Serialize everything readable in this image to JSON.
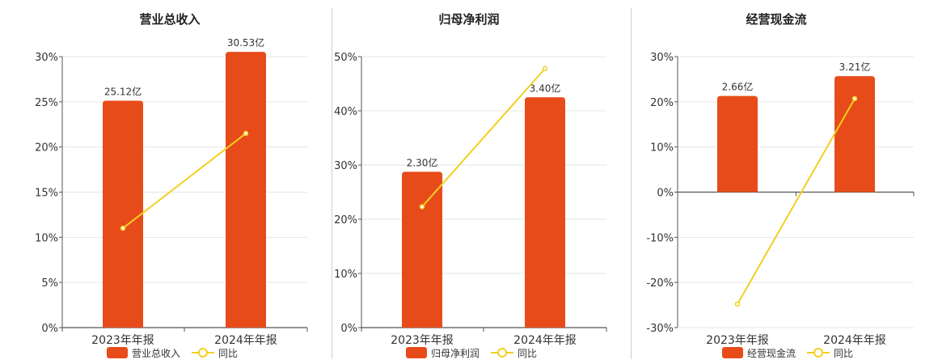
{
  "colors": {
    "bar": "#E84B1A",
    "line": "#F2D01E",
    "grid": "#e6e6e6",
    "axis": "#555555",
    "text": "#333333"
  },
  "chart_data": [
    {
      "type": "bar",
      "title": "营业总收入",
      "categories": [
        "2023年年报",
        "2024年年报"
      ],
      "series": [
        {
          "name": "营业总收入",
          "type": "bar",
          "values": [
            25.12,
            30.53
          ],
          "labels": [
            "25.12亿",
            "30.53亿"
          ],
          "ylim": [
            0,
            30
          ]
        },
        {
          "name": "同比",
          "type": "line",
          "values": [
            11.0,
            21.5
          ],
          "unit": "%"
        }
      ],
      "ylim": [
        0,
        30
      ],
      "yticks": [
        "0%",
        "5%",
        "10%",
        "15%",
        "20%",
        "25%",
        "30%"
      ],
      "grid": true,
      "legend": "bottom"
    },
    {
      "type": "bar",
      "title": "归母净利润",
      "categories": [
        "2023年年报",
        "2024年年报"
      ],
      "series": [
        {
          "name": "归母净利润",
          "type": "bar",
          "values": [
            2.3,
            3.4
          ],
          "labels": [
            "2.30亿",
            "3.40亿"
          ],
          "ylim": [
            0,
            4.0
          ]
        },
        {
          "name": "同比",
          "type": "line",
          "values": [
            22.3,
            47.8
          ],
          "unit": "%"
        }
      ],
      "ylim": [
        0,
        50
      ],
      "yticks": [
        "0%",
        "10%",
        "20%",
        "30%",
        "40%",
        "50%"
      ],
      "grid": true,
      "legend": "bottom"
    },
    {
      "type": "bar",
      "title": "经营现金流",
      "categories": [
        "2023年年报",
        "2024年年报"
      ],
      "series": [
        {
          "name": "经营现金流",
          "type": "bar",
          "values": [
            2.66,
            3.21
          ],
          "labels": [
            "2.66亿",
            "3.21亿"
          ],
          "ylim": [
            -3.75,
            3.75
          ]
        },
        {
          "name": "同比",
          "type": "line",
          "values": [
            -24.8,
            20.7
          ],
          "unit": "%"
        }
      ],
      "ylim": [
        -30,
        30
      ],
      "yticks": [
        "-30%",
        "-20%",
        "-10%",
        "0%",
        "10%",
        "20%",
        "30%"
      ],
      "grid": true,
      "legend": "bottom"
    }
  ]
}
